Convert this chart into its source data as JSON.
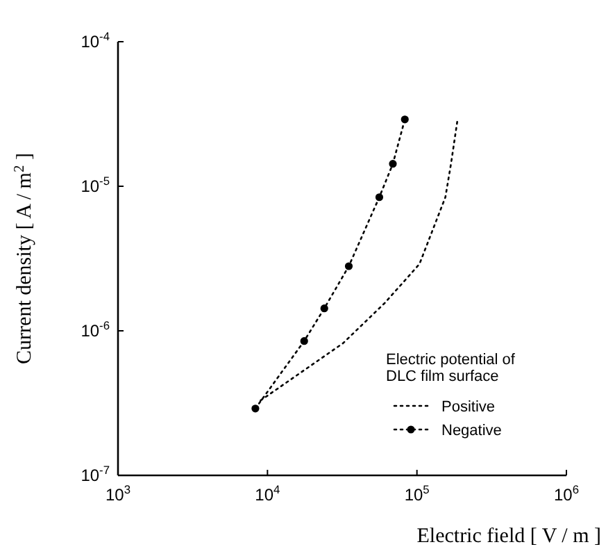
{
  "chart_data": {
    "type": "line",
    "xlabel": "Electric field  [ V / m ]",
    "ylabel": "Current density  [ A / m$^{2}$ ]",
    "log": "xy",
    "grid": false,
    "legend": "bottom right",
    "legend_title": "Electric potential of DLC film surface",
    "xlim": [
      1000,
      1000000
    ],
    "xticks": [
      {
        "value": 1000,
        "label": "10$^{3}$"
      },
      {
        "value": 10000,
        "label": "10$^{4}$"
      },
      {
        "value": 100000,
        "label": "10$^{5}$"
      },
      {
        "value": 1000000,
        "label": "10$^{6}$"
      }
    ],
    "ylim": [
      1e-07,
      0.0001
    ],
    "yticks": [
      {
        "value": 1e-07,
        "label": "10$^{-7}$"
      },
      {
        "value": 1e-06,
        "label": "10$^{-6}$"
      },
      {
        "value": 1e-05,
        "label": "10$^{-5}$"
      },
      {
        "value": 0.0001,
        "label": "10$^{-4}$"
      }
    ],
    "series": [
      {
        "name": "Positive",
        "color": "#000000",
        "marker": "none",
        "line_style": "dotted",
        "x": [
          9000,
          32000,
          61000,
          104000,
          155000,
          169000,
          187000
        ],
        "values": [
          3.3e-07,
          8.2e-07,
          1.56e-06,
          2.9e-06,
          8.4e-06,
          1.43e-05,
          2.9e-05
        ]
      },
      {
        "name": "Negative",
        "color": "#000000",
        "marker": "circle",
        "line_style": "dotted",
        "x": [
          8300,
          17600,
          24000,
          35000,
          56000,
          69000,
          83000
        ],
        "values": [
          2.9e-07,
          8.5e-07,
          1.43e-06,
          2.8e-06,
          8.4e-06,
          1.43e-05,
          2.9e-05
        ]
      }
    ]
  }
}
